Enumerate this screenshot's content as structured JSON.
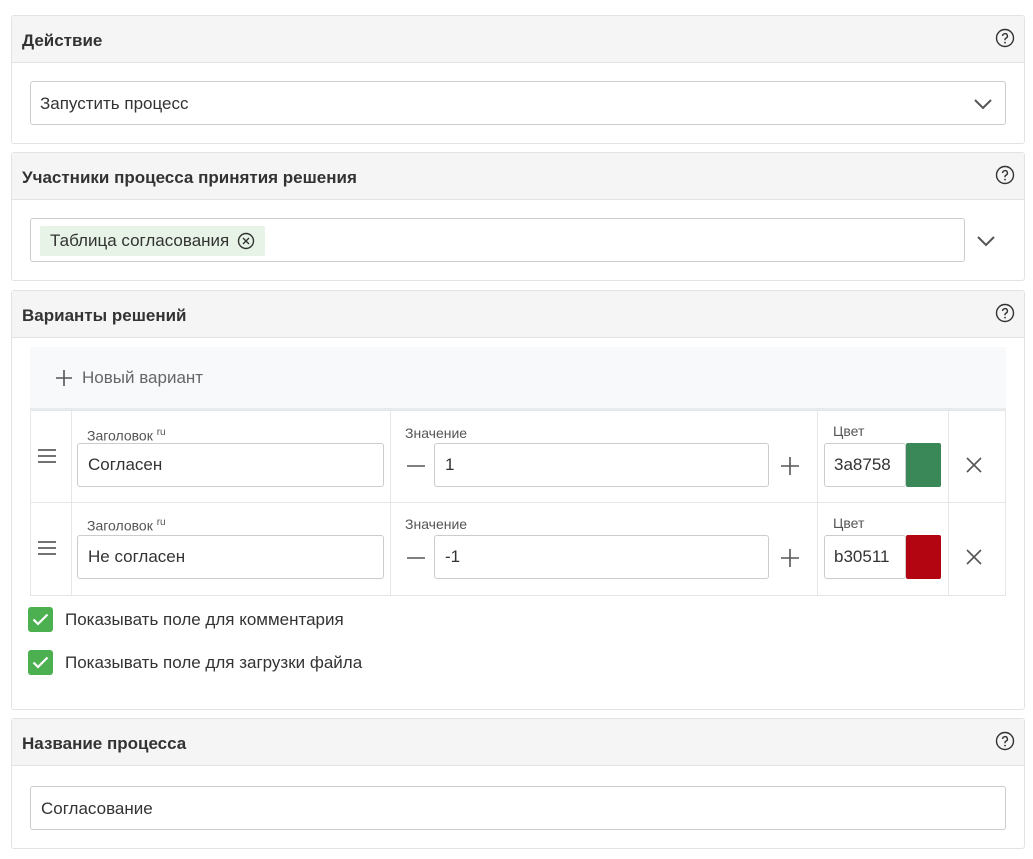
{
  "action_section": {
    "title": "Действие",
    "selected_value": "Запустить процесс",
    "icons": [
      "help-icon",
      "chevron-down-icon"
    ]
  },
  "participants_section": {
    "title": "Участники процесса принятия решения",
    "tags": [
      {
        "label": "Таблица согласования"
      }
    ],
    "icons": [
      "help-icon",
      "close-circle-icon",
      "chevron-down-icon"
    ]
  },
  "variants_section": {
    "title": "Варианты решений",
    "add_label": "Новый вариант",
    "variants": [
      {
        "title_label": "Заголовок",
        "title_lang": "ru",
        "title_value": "Согласен",
        "value_label": "Значение",
        "value": "1",
        "color_label": "Цвет",
        "color_hex": "3a8758",
        "color": "#3a8758"
      },
      {
        "title_label": "Заголовок",
        "title_lang": "ru",
        "title_value": "Не согласен",
        "value_label": "Значение",
        "value": "-1",
        "color_label": "Цвет",
        "color_hex": "b30511",
        "color": "#b30511"
      }
    ],
    "checkboxes": [
      {
        "label": "Показывать поле для комментария",
        "checked": true
      },
      {
        "label": "Показывать поле для загрузки файла",
        "checked": true
      }
    ]
  },
  "process_name_section": {
    "title": "Название процесса",
    "value": "Согласование"
  },
  "colors": {
    "checkbox_green": "#4caf50",
    "tag_background": "#e6f3e6"
  }
}
